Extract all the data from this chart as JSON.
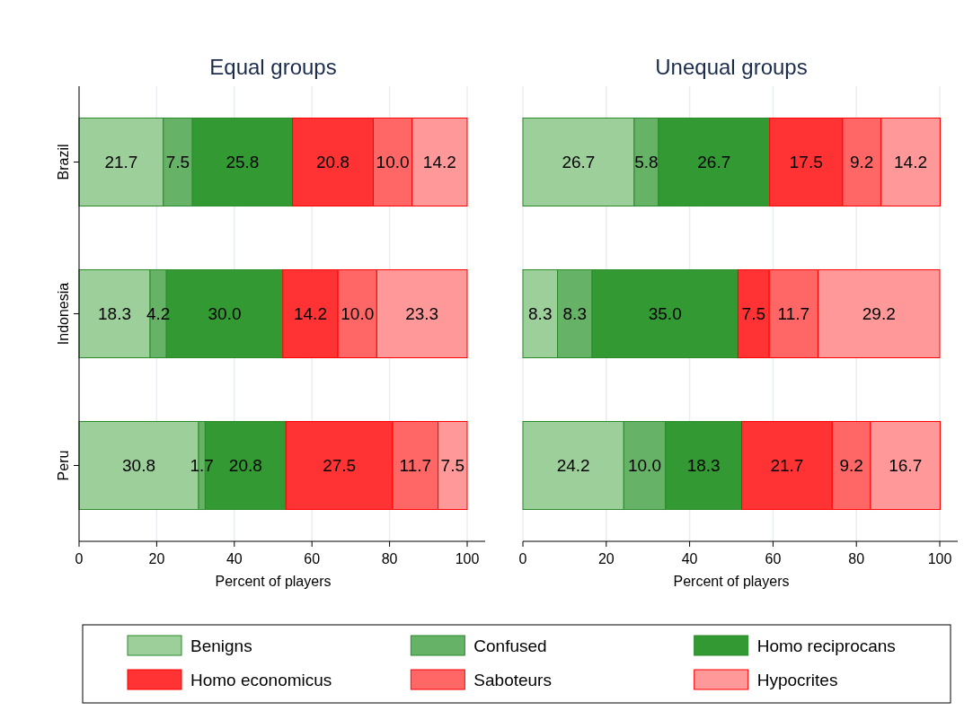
{
  "chart_data": [
    {
      "type": "bar",
      "orientation": "horizontal",
      "stacked": true,
      "title": "Equal groups",
      "xlabel": "Percent of players",
      "categories": [
        "Brazil",
        "Indonesia",
        "Peru"
      ],
      "xlim": [
        0,
        100
      ],
      "xticks": [
        0,
        20,
        40,
        60,
        80,
        100
      ],
      "grid": "x",
      "legend": "bottom",
      "series": [
        {
          "name": "Benigns",
          "color": "#9ccf9a",
          "values": [
            21.7,
            18.3,
            30.8
          ],
          "value_labels": [
            "21.7",
            "18.3",
            "30.8"
          ]
        },
        {
          "name": "Confused",
          "color": "#66b266",
          "values": [
            7.5,
            4.2,
            1.7
          ],
          "value_labels": [
            "7.5",
            "4.2",
            "1.7"
          ]
        },
        {
          "name": "Homo reciprocans",
          "color": "#339933",
          "values": [
            25.8,
            30.0,
            20.8
          ],
          "value_labels": [
            "25.8",
            "30.0",
            "20.8"
          ]
        },
        {
          "name": "Homo economicus",
          "color": "#ff3333",
          "values": [
            20.8,
            14.2,
            27.5
          ],
          "value_labels": [
            "20.8",
            "14.2",
            "27.5"
          ]
        },
        {
          "name": "Saboteurs",
          "color": "#ff6666",
          "values": [
            10.0,
            10.0,
            11.7
          ],
          "value_labels": [
            "10.0",
            "10.0",
            "11.7"
          ]
        },
        {
          "name": "Hypocrites",
          "color": "#ff9999",
          "values": [
            14.2,
            23.3,
            7.5
          ],
          "value_labels": [
            "14.2",
            "23.3",
            "7.5"
          ]
        }
      ]
    },
    {
      "type": "bar",
      "orientation": "horizontal",
      "stacked": true,
      "title": "Unequal groups",
      "xlabel": "Percent of players",
      "categories": [
        null,
        null,
        null
      ],
      "xlim": [
        0,
        100
      ],
      "xticks": [
        0,
        20,
        40,
        60,
        80,
        100
      ],
      "grid": "x",
      "tick_labels": "x",
      "series": [
        {
          "color": "#9ccf9a",
          "values": [
            26.7,
            8.3,
            24.2
          ],
          "value_labels": [
            "26.7",
            "8.3",
            "24.2"
          ]
        },
        {
          "color": "#66b266",
          "values": [
            5.8,
            8.3,
            10.0
          ],
          "value_labels": [
            "5.8",
            "8.3",
            "10.0"
          ]
        },
        {
          "color": "#339933",
          "values": [
            26.7,
            35.0,
            18.3
          ],
          "value_labels": [
            "26.7",
            "35.0",
            "18.3"
          ]
        },
        {
          "color": "#ff3333",
          "values": [
            17.5,
            7.5,
            21.7
          ],
          "value_labels": [
            "17.5",
            "7.5",
            "21.7"
          ]
        },
        {
          "color": "#ff6666",
          "values": [
            9.2,
            11.7,
            9.2
          ],
          "value_labels": [
            "9.2",
            "11.7",
            "9.2"
          ]
        },
        {
          "color": "#ff9999",
          "values": [
            14.2,
            29.2,
            16.7
          ],
          "value_labels": [
            "14.2",
            "29.2",
            "16.7"
          ]
        }
      ]
    }
  ]
}
